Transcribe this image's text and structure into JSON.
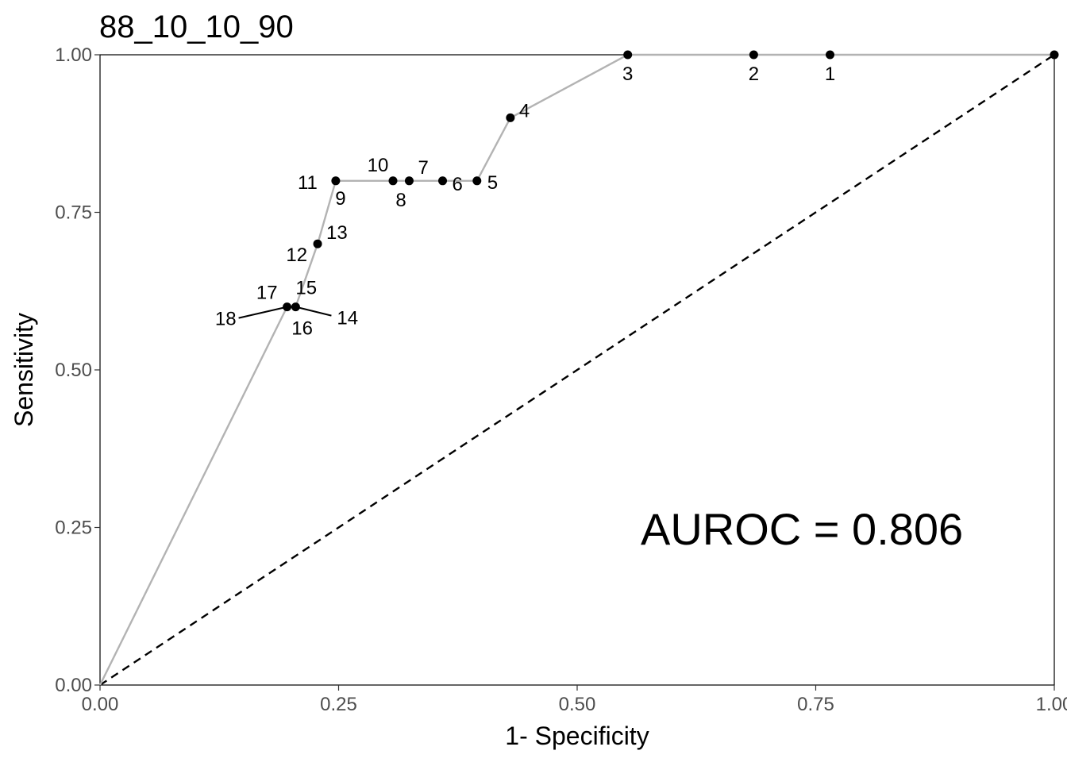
{
  "chart_data": {
    "type": "line",
    "title": "88_10_10_90",
    "xlabel": "1- Specificity",
    "ylabel": "Sensitivity",
    "xlim": [
      0,
      1
    ],
    "ylim": [
      0,
      1
    ],
    "x_ticks": [
      0,
      0.25,
      0.5,
      0.75,
      1.0
    ],
    "x_tick_labels": [
      "0.00",
      "0.25",
      "0.50",
      "0.75",
      "1.00"
    ],
    "y_ticks": [
      0,
      0.25,
      0.5,
      0.75,
      1.0
    ],
    "y_tick_labels": [
      "0.00",
      "0.25",
      "0.50",
      "0.75",
      "1.00"
    ],
    "grid": false,
    "annotation": "AUROC = 0.806",
    "colors": {
      "roc_line": "#b3b3b3",
      "points": "#000000",
      "reference_line": "#000000",
      "text": "#000000",
      "tick_text": "#4d4d4d"
    },
    "roc_curve": [
      [
        0,
        0
      ],
      [
        0.196,
        0.6
      ],
      [
        0.205,
        0.6
      ],
      [
        0.228,
        0.7
      ],
      [
        0.247,
        0.8
      ],
      [
        0.268,
        0.8
      ],
      [
        0.307,
        0.8
      ],
      [
        0.324,
        0.8
      ],
      [
        0.359,
        0.8
      ],
      [
        0.395,
        0.8
      ],
      [
        0.43,
        0.9
      ],
      [
        0.553,
        1.0
      ],
      [
        0.685,
        1.0
      ],
      [
        0.765,
        1.0
      ],
      [
        1.0,
        1.0
      ]
    ],
    "points": [
      {
        "label": "1",
        "x": 0.765,
        "y": 1.0
      },
      {
        "label": "2",
        "x": 0.685,
        "y": 1.0
      },
      {
        "label": "3",
        "x": 0.553,
        "y": 1.0
      },
      {
        "label": "4",
        "x": 0.43,
        "y": 0.9
      },
      {
        "label": "5",
        "x": 0.395,
        "y": 0.8
      },
      {
        "label": "6",
        "x": 0.359,
        "y": 0.8
      },
      {
        "label": "7",
        "x": 0.324,
        "y": 0.8
      },
      {
        "label": "8",
        "x": 0.307,
        "y": 0.8
      },
      {
        "label": "9",
        "x": 0.247,
        "y": 0.8
      },
      {
        "label": "10",
        "x": 0.307,
        "y": 0.8
      },
      {
        "label": "11",
        "x": 0.247,
        "y": 0.8
      },
      {
        "label": "12",
        "x": 0.228,
        "y": 0.7
      },
      {
        "label": "13",
        "x": 0.228,
        "y": 0.7
      },
      {
        "label": "14",
        "x": 0.205,
        "y": 0.6
      },
      {
        "label": "15",
        "x": 0.205,
        "y": 0.6
      },
      {
        "label": "16",
        "x": 0.196,
        "y": 0.6
      },
      {
        "label": "17",
        "x": 0.196,
        "y": 0.6
      },
      {
        "label": "18",
        "x": 0.196,
        "y": 0.6
      }
    ],
    "reference_line": [
      [
        0,
        0
      ],
      [
        1,
        1
      ]
    ]
  }
}
